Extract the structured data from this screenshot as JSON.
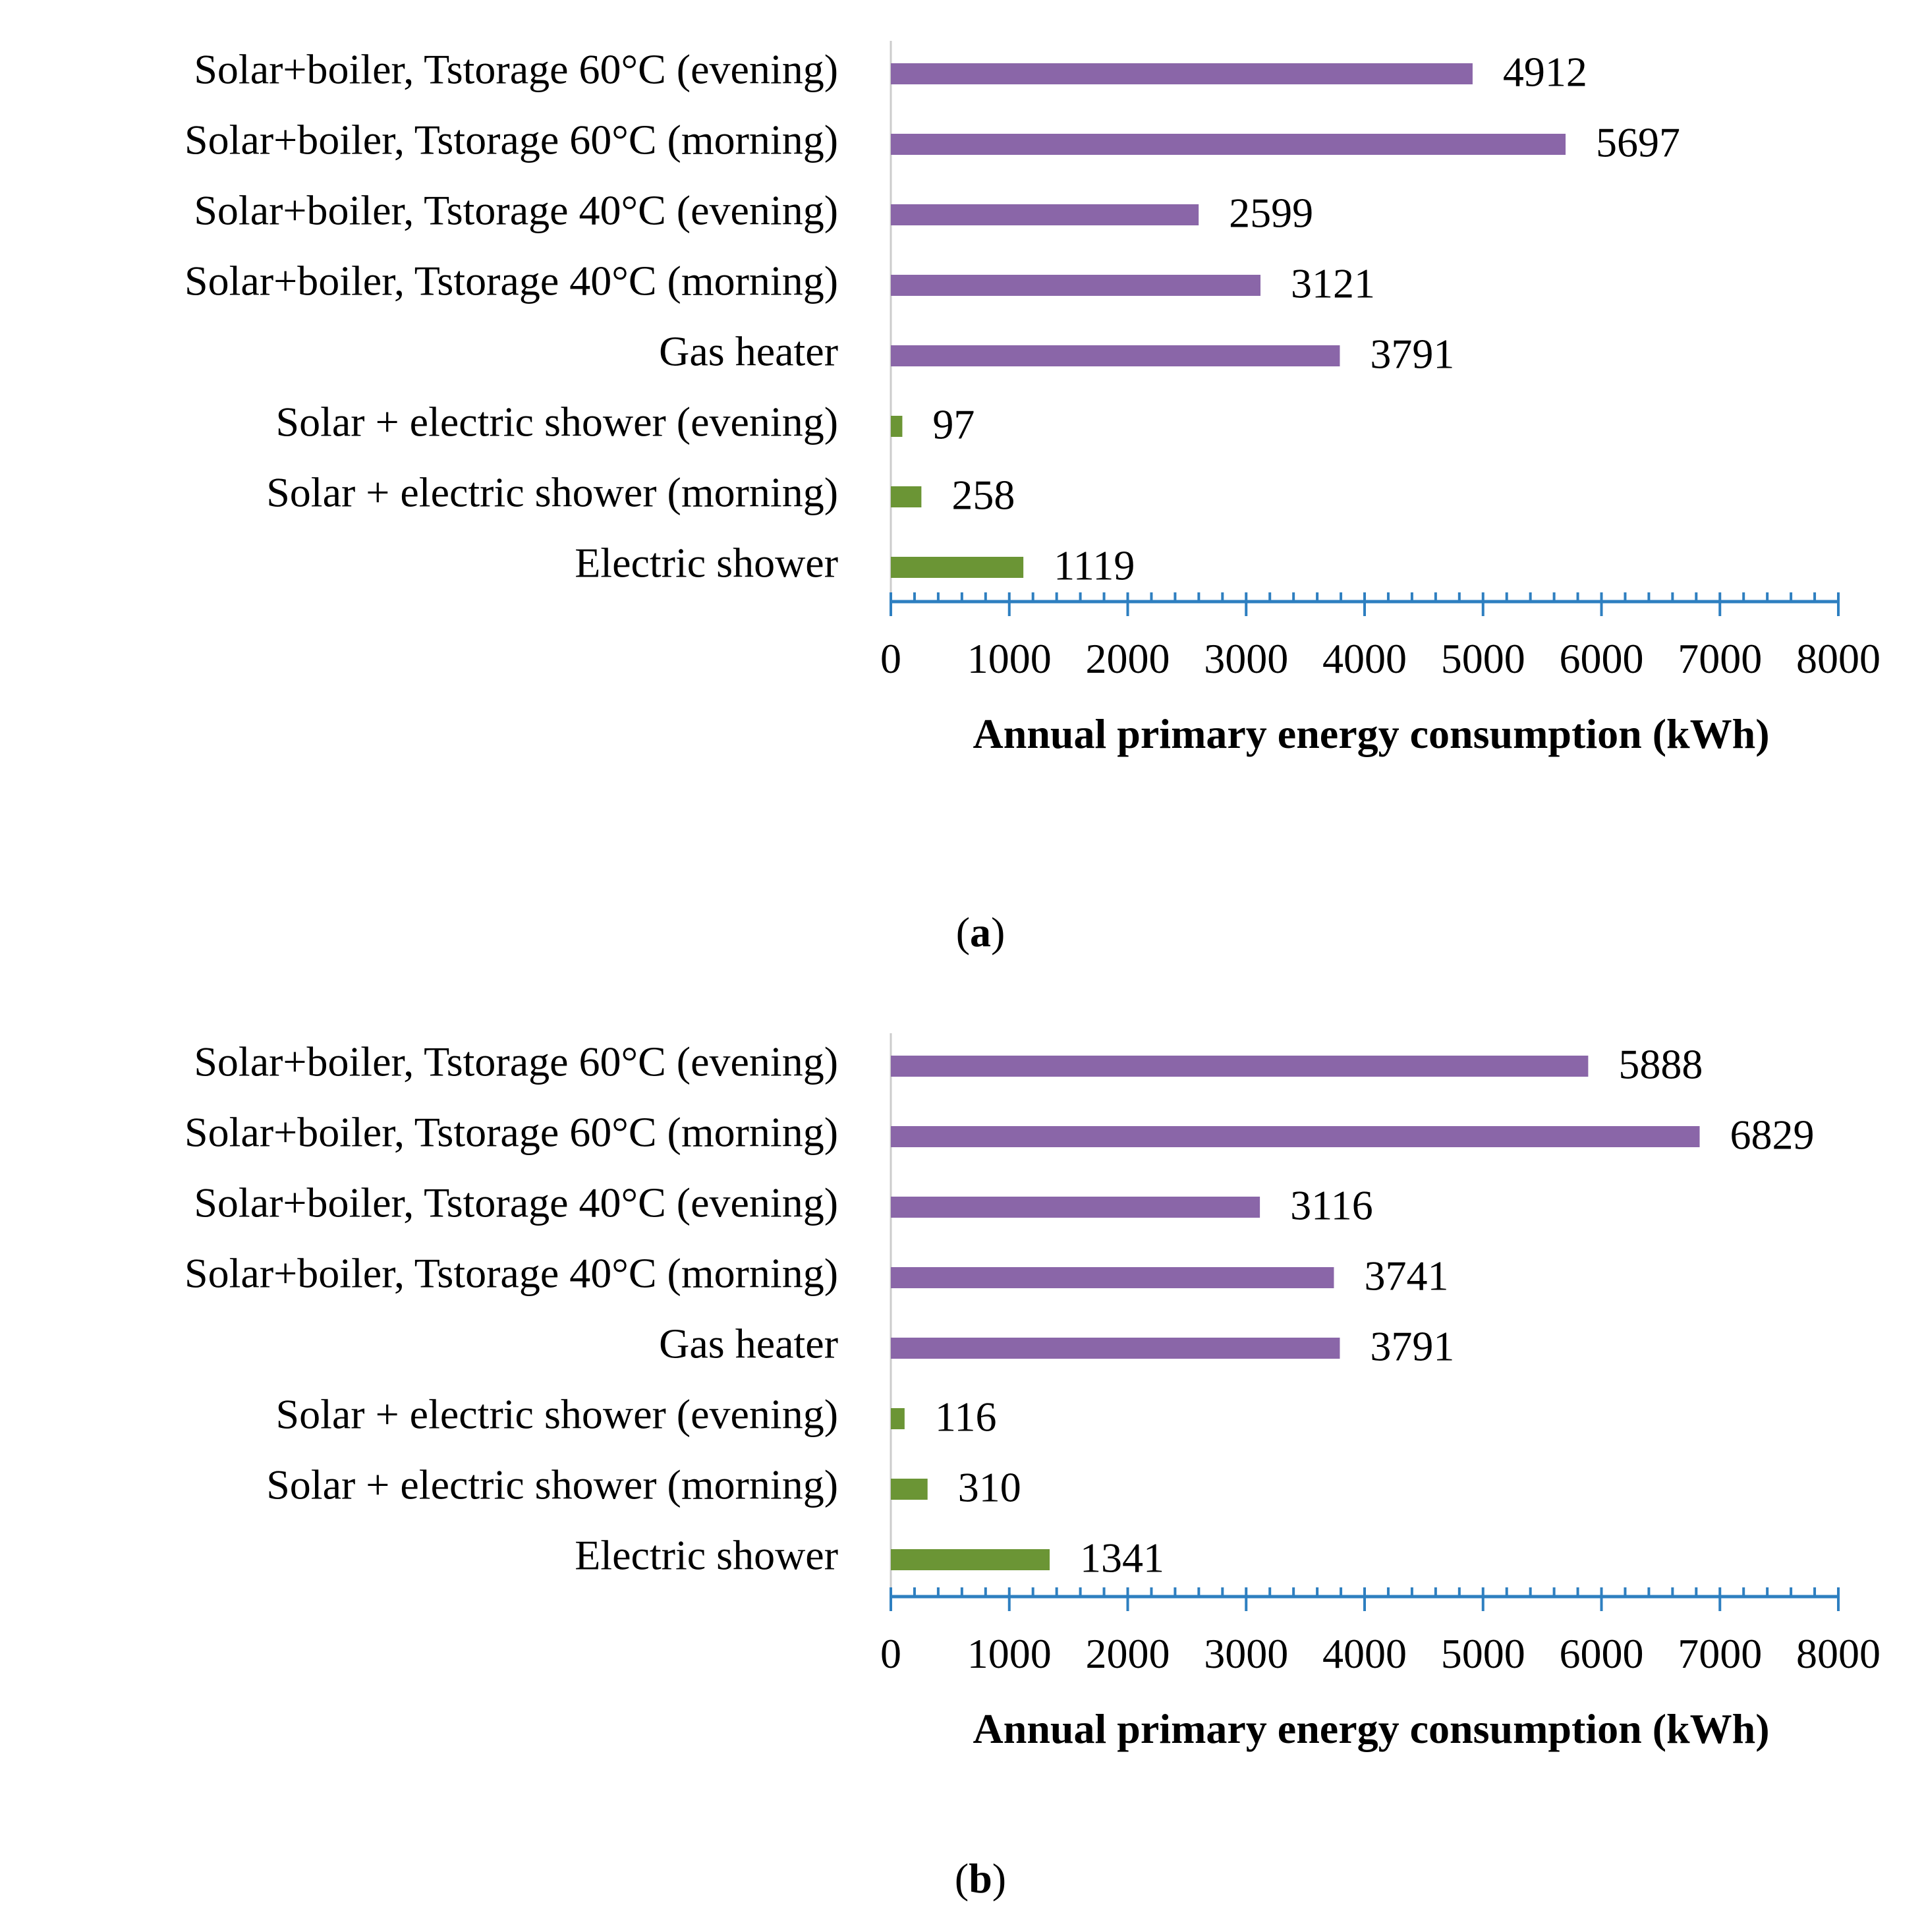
{
  "colors": {
    "purple": "#8a66a8",
    "green": "#6b9535",
    "axis": "#2e7fc0",
    "baseline": "#cccccc",
    "text": "#000000"
  },
  "chart_data": [
    {
      "type": "bar",
      "orientation": "horizontal",
      "panel_label": "a",
      "categories": [
        "Solar+boiler, Tstorage 60°C (evening)",
        "Solar+boiler, Tstorage 60°C (morning)",
        "Solar+boiler, Tstorage 40°C (evening)",
        "Solar+boiler, Tstorage 40°C (morning)",
        "Gas heater",
        "Solar + electric shower (evening)",
        "Solar + electric shower (morning)",
        "Electric shower"
      ],
      "values": [
        4912,
        5697,
        2599,
        3121,
        3791,
        97,
        258,
        1119
      ],
      "value_labels": [
        "4912",
        "5697",
        "2599",
        "3121",
        "3791",
        "97",
        "258",
        "1119"
      ],
      "bar_colors": [
        "purple",
        "purple",
        "purple",
        "purple",
        "purple",
        "green",
        "green",
        "green"
      ],
      "xlabel": "Annual primary energy consumption (kWh)",
      "xlim": [
        0,
        8000
      ],
      "xticks": [
        0,
        1000,
        2000,
        3000,
        4000,
        5000,
        6000,
        7000,
        8000
      ],
      "xtick_labels": [
        "0",
        "1000",
        "2000",
        "3000",
        "4000",
        "5000",
        "6000",
        "7000",
        "8000"
      ],
      "minor_tick_step": 200,
      "grid": false,
      "legend": "none"
    },
    {
      "type": "bar",
      "orientation": "horizontal",
      "panel_label": "b",
      "categories": [
        "Solar+boiler, Tstorage 60°C (evening)",
        "Solar+boiler, Tstorage 60°C (morning)",
        "Solar+boiler, Tstorage 40°C (evening)",
        "Solar+boiler, Tstorage 40°C (morning)",
        "Gas heater",
        "Solar + electric shower (evening)",
        "Solar + electric shower (morning)",
        "Electric shower"
      ],
      "values": [
        5888,
        6829,
        3116,
        3741,
        3791,
        116,
        310,
        1341
      ],
      "value_labels": [
        "5888",
        "6829",
        "3116",
        "3741",
        "3791",
        "116",
        "310",
        "1341"
      ],
      "bar_colors": [
        "purple",
        "purple",
        "purple",
        "purple",
        "purple",
        "green",
        "green",
        "green"
      ],
      "xlabel": "Annual primary energy consumption (kWh)",
      "xlim": [
        0,
        8000
      ],
      "xticks": [
        0,
        1000,
        2000,
        3000,
        4000,
        5000,
        6000,
        7000,
        8000
      ],
      "xtick_labels": [
        "0",
        "1000",
        "2000",
        "3000",
        "4000",
        "5000",
        "6000",
        "7000",
        "8000"
      ],
      "minor_tick_step": 200,
      "grid": false,
      "legend": "none"
    }
  ]
}
